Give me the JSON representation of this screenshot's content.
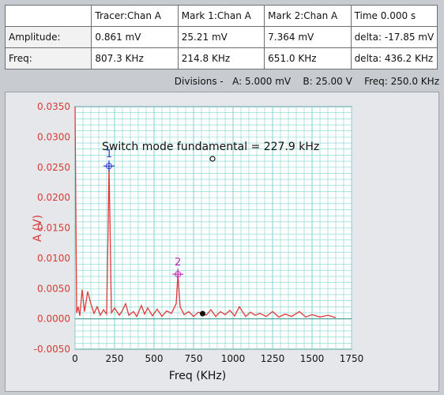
{
  "readout": {
    "header": [
      "",
      "Tracer:Chan A",
      "Mark 1:Chan A",
      "Mark 2:Chan A",
      "Time  0.000 s"
    ],
    "rows": [
      [
        "Amplitude:",
        "0.861 mV",
        "25.21 mV",
        "7.364 mV",
        "delta:  -17.85 mV"
      ],
      [
        "Freq:",
        "807.3 KHz",
        "214.8 KHz",
        "651.0 KHz",
        "delta:  436.2 KHz"
      ]
    ]
  },
  "divisions_text": "Divisions -   A: 5.000 mV    B: 25.00 V    Freq: 250.0 KHz",
  "colors": {
    "trace": "#e03a3a",
    "grid": "#7fd3cf",
    "marker1": "#2a3fd1",
    "marker2": "#c02ab5"
  },
  "chart_data": {
    "type": "line",
    "annotation": "Switch mode fundamental = 227.9 kHz",
    "xlabel": "Freq (KHz)",
    "ylabel": "A (V)",
    "xlim": [
      0,
      1750
    ],
    "ylim": [
      -0.005,
      0.035
    ],
    "xticks": [
      "0",
      "250",
      "500",
      "750",
      "1000",
      "1250",
      "1500",
      "1750"
    ],
    "xtick_values": [
      0,
      250,
      500,
      750,
      1000,
      1250,
      1500,
      1750
    ],
    "yticks": [
      "0.0350",
      "0.0300",
      "0.0250",
      "0.0200",
      "0.0150",
      "0.0100",
      "0.0050",
      "0.0000",
      "-0.0050"
    ],
    "ytick_values": [
      0.035,
      0.03,
      0.025,
      0.02,
      0.015,
      0.01,
      0.005,
      0,
      -0.005
    ],
    "series": [
      {
        "x": [
          0,
          10,
          20,
          30,
          45,
          60,
          80,
          100,
          120,
          140,
          160,
          180,
          200,
          210,
          215,
          220,
          230,
          250,
          280,
          300,
          320,
          340,
          370,
          390,
          420,
          440,
          460,
          490,
          520,
          550,
          580,
          610,
          640,
          651,
          665,
          690,
          720,
          750,
          780,
          807,
          830,
          860,
          890,
          920,
          950,
          980,
          1010,
          1040,
          1080,
          1110,
          1140,
          1170,
          1210,
          1250,
          1290,
          1330,
          1370,
          1420,
          1460,
          1500,
          1550,
          1600,
          1650
        ],
        "y": [
          0.035,
          0.001,
          0.002,
          0.0005,
          0.0048,
          0.0012,
          0.0045,
          0.0025,
          0.0009,
          0.002,
          0.0006,
          0.0015,
          0.0008,
          0.016,
          0.0252,
          0.0175,
          0.001,
          0.0018,
          0.0006,
          0.0014,
          0.0025,
          0.0006,
          0.0012,
          0.0004,
          0.0022,
          0.0008,
          0.0018,
          0.0005,
          0.0016,
          0.0004,
          0.0013,
          0.0009,
          0.0025,
          0.0074,
          0.002,
          0.0007,
          0.0012,
          0.0004,
          0.0011,
          0.0009,
          0.0006,
          0.0015,
          0.0004,
          0.0012,
          0.0007,
          0.0014,
          0.0005,
          0.002,
          0.0004,
          0.0011,
          0.0006,
          0.0009,
          0.0004,
          0.0012,
          0.0003,
          0.0008,
          0.0004,
          0.0012,
          0.0003,
          0.0007,
          0.0003,
          0.0006,
          0.0002
        ]
      }
    ],
    "markers": [
      {
        "label": "1",
        "x": 214.8,
        "y": 0.02521
      },
      {
        "label": "2",
        "x": 651.0,
        "y": 0.007364
      }
    ],
    "tracer_point": {
      "x": 807.3,
      "y": 0.000861
    },
    "grid": true
  }
}
